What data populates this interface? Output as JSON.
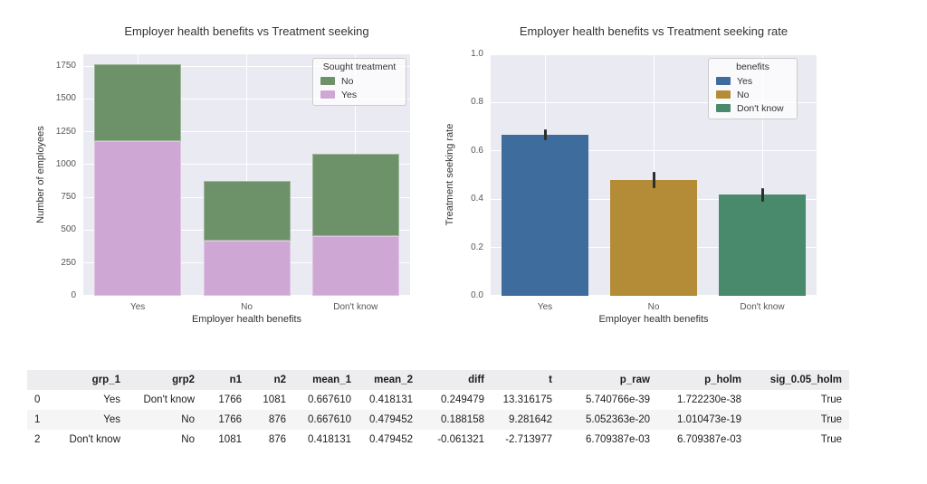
{
  "chart_data": [
    {
      "type": "bar",
      "variant": "stacked",
      "title": "Employer health benefits vs Treatment seeking",
      "xlabel": "Employer health benefits",
      "ylabel": "Number of employees",
      "categories": [
        "Yes",
        "No",
        "Don't know"
      ],
      "series": [
        {
          "name": "Yes",
          "color": "#CFA7D4",
          "values": [
            1179,
            420,
            452
          ]
        },
        {
          "name": "No",
          "color": "#6D9168",
          "values": [
            587,
            456,
            629
          ]
        }
      ],
      "totals": [
        1766,
        876,
        1081
      ],
      "ytick_labels": [
        "0",
        "250",
        "500",
        "750",
        "1000",
        "1250",
        "1500",
        "1750"
      ],
      "ylim": [
        0,
        1840
      ],
      "grid": true,
      "legend": {
        "title": "Sought treatment",
        "position": "upper right",
        "entries": [
          {
            "label": "No",
            "color": "#6D9168"
          },
          {
            "label": "Yes",
            "color": "#CFA7D4"
          }
        ]
      }
    },
    {
      "type": "bar",
      "variant": "single-with-error-bars",
      "title": "Employer health benefits vs Treatment seeking rate",
      "xlabel": "Employer health benefits",
      "ylabel": "Treatment seeking rate",
      "categories": [
        "Yes",
        "No",
        "Don't know"
      ],
      "values": [
        0.66761,
        0.479452,
        0.418131
      ],
      "error_low": [
        0.6456,
        0.4464,
        0.3887
      ],
      "error_high": [
        0.6896,
        0.5126,
        0.4475
      ],
      "colors": [
        "#3E6C9C",
        "#B48C37",
        "#4A8A6C"
      ],
      "ytick_labels": [
        "0.0",
        "0.2",
        "0.4",
        "0.6",
        "0.8",
        "1.0"
      ],
      "ylim": [
        0,
        1.0
      ],
      "grid": true,
      "legend": {
        "title": "benefits",
        "position": "upper right",
        "entries": [
          {
            "label": "Yes",
            "color": "#3E6C9C"
          },
          {
            "label": "No",
            "color": "#B48C37"
          },
          {
            "label": "Don't know",
            "color": "#4A8A6C"
          }
        ]
      }
    },
    {
      "type": "table",
      "columns": [
        "",
        "grp_1",
        "grp2",
        "n1",
        "n2",
        "mean_1",
        "mean_2",
        "diff",
        "t",
        "p_raw",
        "p_holm",
        "sig_0.05_holm"
      ],
      "rows": [
        [
          "0",
          "Yes",
          "Don't know",
          "1766",
          "1081",
          "0.667610",
          "0.418131",
          "0.249479",
          "13.316175",
          "5.740766e-39",
          "1.722230e-38",
          "True"
        ],
        [
          "1",
          "Yes",
          "No",
          "1766",
          "876",
          "0.667610",
          "0.479452",
          "0.188158",
          "9.281642",
          "5.052363e-20",
          "1.010473e-19",
          "True"
        ],
        [
          "2",
          "Don't know",
          "No",
          "1081",
          "876",
          "0.418131",
          "0.479452",
          "-0.061321",
          "-2.713977",
          "6.709387e-03",
          "6.709387e-03",
          "True"
        ]
      ]
    }
  ],
  "style": {
    "plot_background": "#EAEAF2",
    "gridline_color": "#FFFFFF",
    "errorbar_color": "#2E2E2E",
    "text_color": "#333333",
    "tick_color": "#555555"
  }
}
